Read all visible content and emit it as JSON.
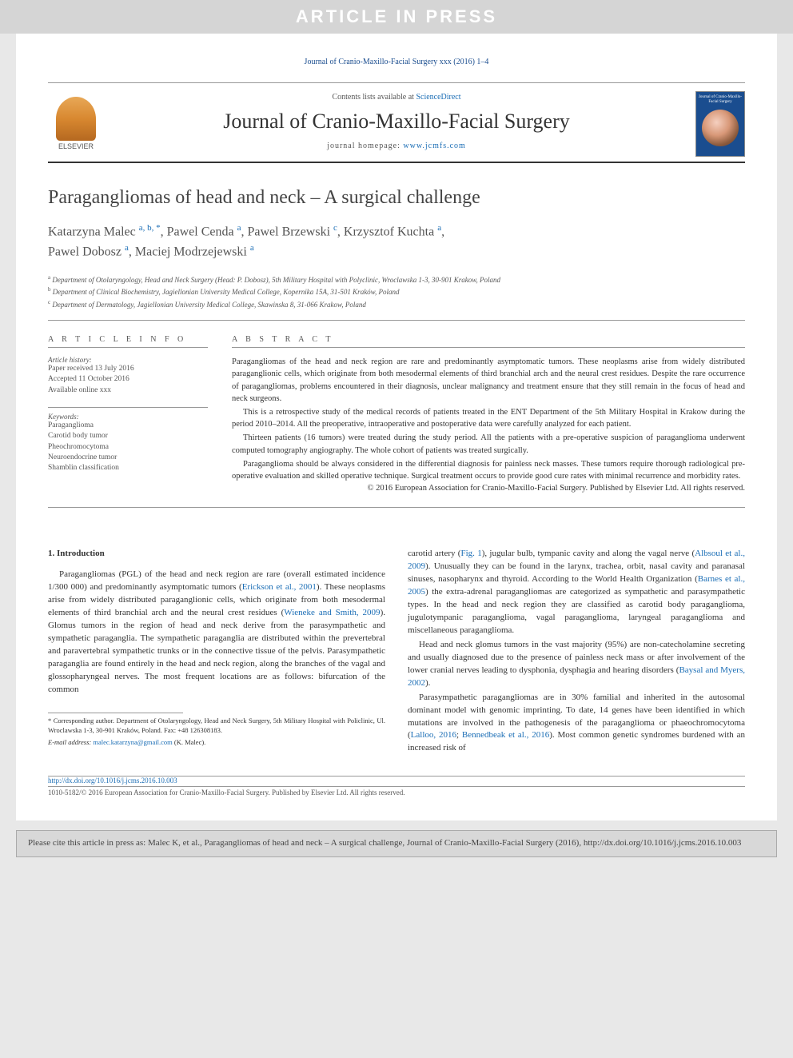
{
  "watermark": "ARTICLE IN PRESS",
  "top_citation": "Journal of Cranio-Maxillo-Facial Surgery xxx (2016) 1–4",
  "header": {
    "contents_text": "Contents lists available at ",
    "sciencedirect": "ScienceDirect",
    "journal_name": "Journal of Cranio-Maxillo-Facial Surgery",
    "homepage_text": "journal homepage: ",
    "homepage_url": "www.jcmfs.com",
    "elsevier": "ELSEVIER",
    "cover_title": "Journal of Cranio-Maxillo-Facial Surgery"
  },
  "title": "Paragangliomas of head and neck – A surgical challenge",
  "authors_html": [
    {
      "name": "Katarzyna Malec",
      "sup": "a, b, *"
    },
    {
      "name": "Pawel Cenda",
      "sup": "a"
    },
    {
      "name": "Pawel Brzewski",
      "sup": "c"
    },
    {
      "name": "Krzysztof Kuchta",
      "sup": "a"
    },
    {
      "name": "Pawel Dobosz",
      "sup": "a"
    },
    {
      "name": "Maciej Modrzejewski",
      "sup": "a"
    }
  ],
  "affiliations": [
    {
      "sup": "a",
      "text": "Department of Otolaryngology, Head and Neck Surgery (Head: P. Dobosz), 5th Military Hospital with Polyclinic, Wroclawska 1-3, 30-901 Krakow, Poland"
    },
    {
      "sup": "b",
      "text": "Department of Clinical Biochemistry, Jagiellonian University Medical College, Kopernika 15A, 31-501 Kraków, Poland"
    },
    {
      "sup": "c",
      "text": "Department of Dermatology, Jagiellonian University Medical College, Skawinska 8, 31-066 Krakow, Poland"
    }
  ],
  "article_info": {
    "heading": "A R T I C L E   I N F O",
    "history_label": "Article history:",
    "history": [
      "Paper received 13 July 2016",
      "Accepted 11 October 2016",
      "Available online xxx"
    ],
    "keywords_label": "Keywords:",
    "keywords": [
      "Paraganglioma",
      "Carotid body tumor",
      "Pheochromocytoma",
      "Neuroendocrine tumor",
      "Shamblin classification"
    ]
  },
  "abstract": {
    "heading": "A B S T R A C T",
    "paragraphs": [
      "Paragangliomas of the head and neck region are rare and predominantly asymptomatic tumors. These neoplasms arise from widely distributed paraganglionic cells, which originate from both mesodermal elements of third branchial arch and the neural crest residues. Despite the rare occurrence of paragangliomas, problems encountered in their diagnosis, unclear malignancy and treatment ensure that they still remain in the focus of head and neck surgeons.",
      "This is a retrospective study of the medical records of patients treated in the ENT Department of the 5th Military Hospital in Krakow during the period 2010–2014. All the preoperative, intraoperative and postoperative data were carefully analyzed for each patient.",
      "Thirteen patients (16 tumors) were treated during the study period. All the patients with a pre-operative suspicion of paraganglioma underwent computed tomography angiography. The whole cohort of patients was treated surgically.",
      "Paraganglioma should be always considered in the differential diagnosis for painless neck masses. These tumors require thorough radiological pre-operative evaluation and skilled operative technique. Surgical treatment occurs to provide good cure rates with minimal recurrence and morbidity rates."
    ],
    "copyright": "© 2016 European Association for Cranio-Maxillo-Facial Surgery. Published by Elsevier Ltd. All rights reserved."
  },
  "body": {
    "section_heading": "1. Introduction",
    "col1_p1_a": "Paragangliomas (PGL) of the head and neck region are rare (overall estimated incidence 1/300 000) and predominantly asymptomatic tumors (",
    "col1_cite1": "Erickson et al., 2001",
    "col1_p1_b": "). These neoplasms arise from widely distributed paraganglionic cells, which originate from both mesodermal elements of third branchial arch and the neural crest residues (",
    "col1_cite2": "Wieneke and Smith, 2009",
    "col1_p1_c": "). Glomus tumors in the region of head and neck derive from the parasympathetic and sympathetic paraganglia. The sympathetic paraganglia are distributed within the prevertebral and paravertebral sympathetic trunks or in the connective tissue of the pelvis. Parasympathetic paraganglia are found entirely in the head and neck region, along the branches of the vagal and glossopharyngeal nerves. The most frequent locations are as follows: bifurcation of the common",
    "col2_p1_a": "carotid artery (",
    "col2_cite1": "Fig. 1",
    "col2_p1_b": "), jugular bulb, tympanic cavity and along the vagal nerve (",
    "col2_cite2": "Albsoul et al., 2009",
    "col2_p1_c": "). Unusually they can be found in the larynx, trachea, orbit, nasal cavity and paranasal sinuses, nasopharynx and thyroid. According to the World Health Organization (",
    "col2_cite3": "Barnes et al., 2005",
    "col2_p1_d": ") the extra-adrenal paragangliomas are categorized as sympathetic and parasympathetic types. In the head and neck region they are classified as carotid body paraganglioma, jugulotympanic paraganglioma, vagal paraganglioma, laryngeal paraganglioma and miscellaneous paraganglioma.",
    "col2_p2_a": "Head and neck glomus tumors in the vast majority (95%) are non-catecholamine secreting and usually diagnosed due to the presence of painless neck mass or after involvement of the lower cranial nerves leading to dysphonia, dysphagia and hearing disorders (",
    "col2_cite4": "Baysal and Myers, 2002",
    "col2_p2_b": ").",
    "col2_p3_a": "Parasympathetic paragangliomas are in 30% familial and inherited in the autosomal dominant model with genomic imprinting. To date, 14 genes have been identified in which mutations are involved in the pathogenesis of the paraganglioma or phaeochromocytoma (",
    "col2_cite5": "Lalloo, 2016",
    "col2_cite5_sep": "; ",
    "col2_cite6": "Bennedbeak et al., 2016",
    "col2_p3_b": "). Most common genetic syndromes burdened with an increased risk of"
  },
  "footnote": {
    "corresponding": "* Corresponding author. Department of Otolaryngology, Head and Neck Surgery, 5th Military Hospital with Policlinic, Ul. Wroclawska 1-3, 30-901 Kraków, Poland. Fax: +48 126308183.",
    "email_label": "E-mail address: ",
    "email": "malec.katarzyna@gmail.com",
    "email_person": " (K. Malec)."
  },
  "doi": {
    "link": "http://dx.doi.org/10.1016/j.jcms.2016.10.003",
    "issn": "1010-5182/© 2016 European Association for Cranio-Maxillo-Facial Surgery. Published by Elsevier Ltd. All rights reserved."
  },
  "citation_box": "Please cite this article in press as: Malec K, et al., Paragangliomas of head and neck – A surgical challenge, Journal of Cranio-Maxillo-Facial Surgery (2016), http://dx.doi.org/10.1016/j.jcms.2016.10.003",
  "colors": {
    "link": "#1a6db5",
    "banner_bg": "#d5d5d5",
    "page_bg": "#ffffff"
  }
}
